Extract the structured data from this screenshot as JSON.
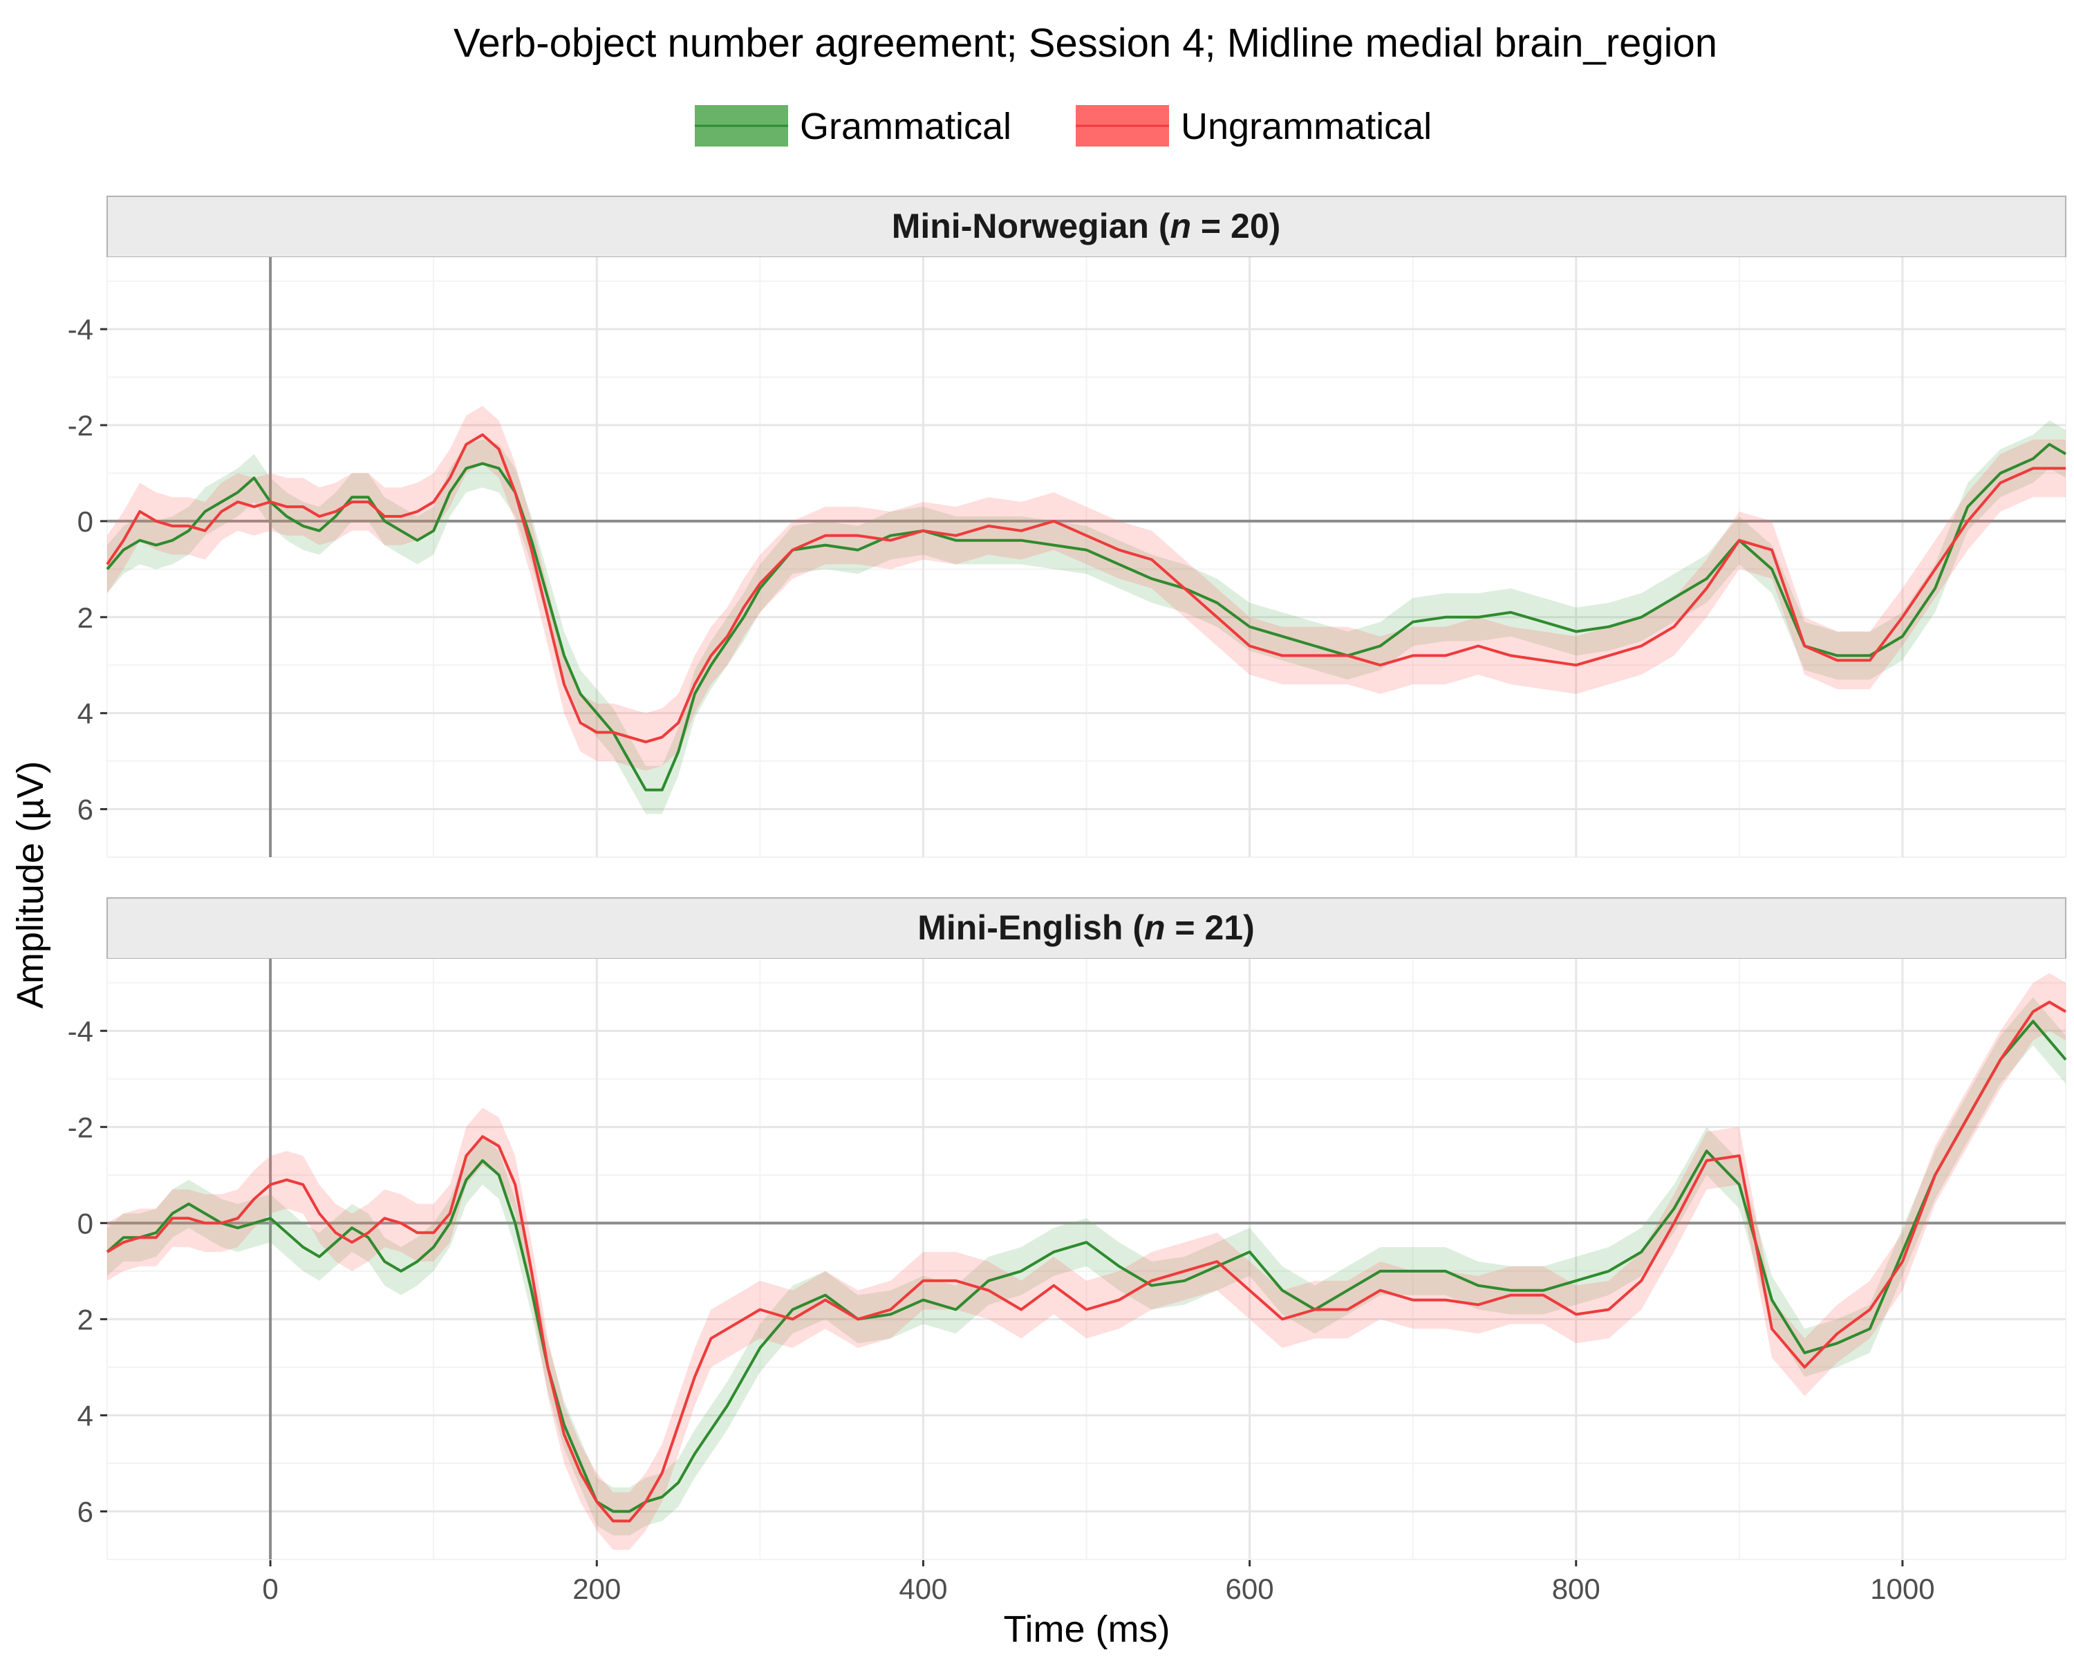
{
  "chart_data": {
    "type": "line",
    "title": "Verb-object number agreement; Session 4; Midline medial brain_region",
    "xlabel": "Time (ms)",
    "ylabel": "Amplitude (µV)",
    "xlim": [
      -100,
      1100
    ],
    "ylim": [
      7,
      -5.5
    ],
    "y_axis_reversed": true,
    "xticks": [
      0,
      200,
      400,
      600,
      800,
      1000
    ],
    "xtick_labels": [
      "0",
      "200",
      "400",
      "600",
      "800",
      "1000"
    ],
    "yticks": [
      -4,
      -2,
      0,
      2,
      4,
      6
    ],
    "ytick_labels": [
      "-4",
      "-2",
      "0",
      "2",
      "4",
      "6"
    ],
    "grid": true,
    "legend_position": "top",
    "legend": [
      {
        "label": "Grammatical",
        "color": "#2e8b2e",
        "fill": "#69b369"
      },
      {
        "label": "Ungrammatical",
        "color": "#ee3b3b",
        "fill": "#ff6b6b"
      }
    ],
    "panels": [
      {
        "label_prefix": "Mini-Norwegian (",
        "label_italic": "n",
        "label_suffix": " = 20)",
        "series": [
          {
            "name": "Grammatical",
            "ci_halfwidth": 0.5,
            "x": [
              -100,
              -90,
              -80,
              -70,
              -60,
              -50,
              -40,
              -30,
              -20,
              -10,
              0,
              10,
              20,
              30,
              40,
              50,
              60,
              70,
              80,
              90,
              100,
              110,
              120,
              130,
              140,
              150,
              160,
              170,
              180,
              190,
              200,
              210,
              220,
              230,
              240,
              250,
              260,
              270,
              280,
              290,
              300,
              320,
              340,
              360,
              380,
              400,
              420,
              440,
              460,
              480,
              500,
              520,
              540,
              560,
              580,
              600,
              620,
              640,
              660,
              680,
              700,
              720,
              740,
              760,
              780,
              800,
              820,
              840,
              860,
              880,
              900,
              920,
              940,
              960,
              980,
              1000,
              1020,
              1040,
              1060,
              1080,
              1090,
              1100
            ],
            "y": [
              1.0,
              0.6,
              0.4,
              0.5,
              0.4,
              0.2,
              -0.2,
              -0.4,
              -0.6,
              -0.9,
              -0.4,
              -0.1,
              0.1,
              0.2,
              -0.1,
              -0.5,
              -0.5,
              0.0,
              0.2,
              0.4,
              0.2,
              -0.6,
              -1.1,
              -1.2,
              -1.1,
              -0.6,
              0.4,
              1.6,
              2.8,
              3.6,
              4.0,
              4.4,
              5.0,
              5.6,
              5.6,
              4.8,
              3.6,
              3.0,
              2.5,
              2.0,
              1.4,
              0.6,
              0.5,
              0.6,
              0.3,
              0.2,
              0.4,
              0.4,
              0.4,
              0.5,
              0.6,
              0.9,
              1.2,
              1.4,
              1.7,
              2.2,
              2.4,
              2.6,
              2.8,
              2.6,
              2.1,
              2.0,
              2.0,
              1.9,
              2.1,
              2.3,
              2.2,
              2.0,
              1.6,
              1.2,
              0.4,
              1.0,
              2.6,
              2.8,
              2.8,
              2.4,
              1.4,
              -0.3,
              -1.0,
              -1.3,
              -1.6,
              -1.4
            ]
          },
          {
            "name": "Ungrammatical",
            "ci_halfwidth": 0.6,
            "x": [
              -100,
              -90,
              -80,
              -70,
              -60,
              -50,
              -40,
              -30,
              -20,
              -10,
              0,
              10,
              20,
              30,
              40,
              50,
              60,
              70,
              80,
              90,
              100,
              110,
              120,
              130,
              140,
              150,
              160,
              170,
              180,
              190,
              200,
              210,
              220,
              230,
              240,
              250,
              260,
              270,
              280,
              290,
              300,
              320,
              340,
              360,
              380,
              400,
              420,
              440,
              460,
              480,
              500,
              520,
              540,
              560,
              580,
              600,
              620,
              640,
              660,
              680,
              700,
              720,
              740,
              760,
              780,
              800,
              820,
              840,
              860,
              880,
              900,
              920,
              940,
              960,
              980,
              1000,
              1020,
              1040,
              1060,
              1080,
              1090,
              1100
            ],
            "y": [
              0.9,
              0.4,
              -0.2,
              0.0,
              0.1,
              0.1,
              0.2,
              -0.2,
              -0.4,
              -0.3,
              -0.4,
              -0.3,
              -0.3,
              -0.1,
              -0.2,
              -0.4,
              -0.4,
              -0.1,
              -0.1,
              -0.2,
              -0.4,
              -0.9,
              -1.6,
              -1.8,
              -1.5,
              -0.6,
              0.6,
              2.0,
              3.4,
              4.2,
              4.4,
              4.4,
              4.5,
              4.6,
              4.5,
              4.2,
              3.4,
              2.8,
              2.4,
              1.8,
              1.3,
              0.6,
              0.3,
              0.3,
              0.4,
              0.2,
              0.3,
              0.1,
              0.2,
              0.0,
              0.3,
              0.6,
              0.8,
              1.4,
              2.0,
              2.6,
              2.8,
              2.8,
              2.8,
              3.0,
              2.8,
              2.8,
              2.6,
              2.8,
              2.9,
              3.0,
              2.8,
              2.6,
              2.2,
              1.4,
              0.4,
              0.6,
              2.6,
              2.9,
              2.9,
              2.0,
              1.0,
              0.0,
              -0.8,
              -1.1,
              -1.1,
              -1.1
            ]
          }
        ]
      },
      {
        "label_prefix": "Mini-English (",
        "label_italic": "n",
        "label_suffix": " = 21)",
        "series": [
          {
            "name": "Grammatical",
            "ci_halfwidth": 0.5,
            "x": [
              -100,
              -90,
              -80,
              -70,
              -60,
              -50,
              -40,
              -30,
              -20,
              -10,
              0,
              10,
              20,
              30,
              40,
              50,
              60,
              70,
              80,
              90,
              100,
              110,
              120,
              130,
              140,
              150,
              160,
              170,
              180,
              190,
              200,
              210,
              220,
              230,
              240,
              250,
              260,
              270,
              280,
              290,
              300,
              320,
              340,
              360,
              380,
              400,
              420,
              440,
              460,
              480,
              500,
              520,
              540,
              560,
              580,
              600,
              620,
              640,
              660,
              680,
              700,
              720,
              740,
              760,
              780,
              800,
              820,
              840,
              860,
              880,
              900,
              920,
              940,
              960,
              980,
              1000,
              1020,
              1040,
              1060,
              1080,
              1090,
              1100
            ],
            "y": [
              0.6,
              0.3,
              0.3,
              0.2,
              -0.2,
              -0.4,
              -0.2,
              0.0,
              0.1,
              0.0,
              -0.1,
              0.2,
              0.5,
              0.7,
              0.4,
              0.1,
              0.3,
              0.8,
              1.0,
              0.8,
              0.5,
              0.0,
              -0.9,
              -1.3,
              -1.0,
              0.0,
              1.4,
              3.0,
              4.2,
              5.0,
              5.8,
              6.0,
              6.0,
              5.8,
              5.7,
              5.4,
              4.8,
              4.3,
              3.8,
              3.2,
              2.6,
              1.8,
              1.5,
              2.0,
              1.9,
              1.6,
              1.8,
              1.2,
              1.0,
              0.6,
              0.4,
              0.9,
              1.3,
              1.2,
              0.9,
              0.6,
              1.4,
              1.8,
              1.4,
              1.0,
              1.0,
              1.0,
              1.3,
              1.4,
              1.4,
              1.2,
              1.0,
              0.6,
              -0.3,
              -1.5,
              -0.8,
              1.6,
              2.7,
              2.5,
              2.2,
              0.6,
              -1.0,
              -2.2,
              -3.4,
              -4.2,
              -3.8,
              -3.4
            ]
          },
          {
            "name": "Ungrammatical",
            "ci_halfwidth": 0.6,
            "x": [
              -100,
              -90,
              -80,
              -70,
              -60,
              -50,
              -40,
              -30,
              -20,
              -10,
              0,
              10,
              20,
              30,
              40,
              50,
              60,
              70,
              80,
              90,
              100,
              110,
              120,
              130,
              140,
              150,
              160,
              170,
              180,
              190,
              200,
              210,
              220,
              230,
              240,
              250,
              260,
              270,
              280,
              290,
              300,
              320,
              340,
              360,
              380,
              400,
              420,
              440,
              460,
              480,
              500,
              520,
              540,
              560,
              580,
              600,
              620,
              640,
              660,
              680,
              700,
              720,
              740,
              760,
              780,
              800,
              820,
              840,
              860,
              880,
              900,
              920,
              940,
              960,
              980,
              1000,
              1020,
              1040,
              1060,
              1080,
              1090,
              1100
            ],
            "y": [
              0.6,
              0.4,
              0.3,
              0.3,
              -0.1,
              -0.1,
              0.0,
              0.0,
              -0.1,
              -0.5,
              -0.8,
              -0.9,
              -0.8,
              -0.2,
              0.2,
              0.4,
              0.2,
              -0.1,
              0.0,
              0.2,
              0.2,
              -0.2,
              -1.4,
              -1.8,
              -1.6,
              -0.8,
              1.0,
              3.0,
              4.4,
              5.2,
              5.8,
              6.2,
              6.2,
              5.8,
              5.2,
              4.2,
              3.2,
              2.4,
              2.2,
              2.0,
              1.8,
              2.0,
              1.6,
              2.0,
              1.8,
              1.2,
              1.2,
              1.4,
              1.8,
              1.3,
              1.8,
              1.6,
              1.2,
              1.0,
              0.8,
              1.4,
              2.0,
              1.8,
              1.8,
              1.4,
              1.6,
              1.6,
              1.7,
              1.5,
              1.5,
              1.9,
              1.8,
              1.2,
              0.0,
              -1.3,
              -1.4,
              2.2,
              3.0,
              2.3,
              1.8,
              0.8,
              -1.0,
              -2.2,
              -3.4,
              -4.4,
              -4.6,
              -4.4
            ]
          }
        ]
      }
    ]
  }
}
